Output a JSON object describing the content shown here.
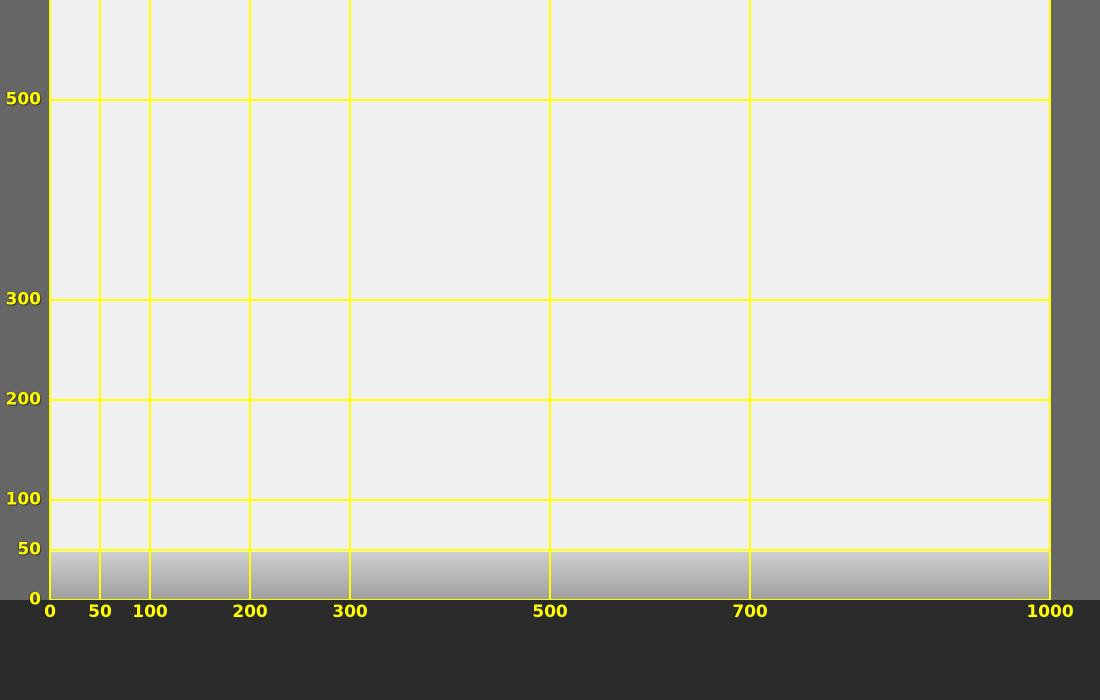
{
  "colors": {
    "grid": "#ffff00",
    "plot_background": "#f0f0f0",
    "frame": "#666666",
    "bottom_bar": "#2b2b2b"
  },
  "grid": {
    "x_ticks": [
      "0",
      "50",
      "100",
      "200",
      "300",
      "500",
      "700",
      "1000"
    ],
    "y_ticks": [
      "0",
      "50",
      "100",
      "200",
      "300",
      "500"
    ]
  }
}
